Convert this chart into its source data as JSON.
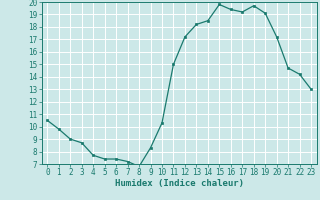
{
  "x": [
    0,
    1,
    2,
    3,
    4,
    5,
    6,
    7,
    8,
    9,
    10,
    11,
    12,
    13,
    14,
    15,
    16,
    17,
    18,
    19,
    20,
    21,
    22,
    23
  ],
  "y": [
    10.5,
    9.8,
    9.0,
    8.7,
    7.7,
    7.4,
    7.4,
    7.2,
    6.8,
    8.3,
    10.3,
    15.0,
    17.2,
    18.2,
    18.5,
    19.8,
    19.4,
    19.2,
    19.7,
    19.1,
    17.2,
    14.7,
    14.2,
    13.0
  ],
  "line_color": "#1a7a6e",
  "marker": "s",
  "marker_size": 2.0,
  "bg_color": "#cce8e8",
  "grid_color": "#ffffff",
  "xlabel": "Humidex (Indice chaleur)",
  "xlim": [
    -0.5,
    23.5
  ],
  "ylim": [
    7,
    20
  ],
  "yticks": [
    7,
    8,
    9,
    10,
    11,
    12,
    13,
    14,
    15,
    16,
    17,
    18,
    19,
    20
  ],
  "xticks": [
    0,
    1,
    2,
    3,
    4,
    5,
    6,
    7,
    8,
    9,
    10,
    11,
    12,
    13,
    14,
    15,
    16,
    17,
    18,
    19,
    20,
    21,
    22,
    23
  ],
  "tick_color": "#1a7a6e",
  "label_color": "#1a7a6e",
  "tick_fontsize": 5.5,
  "xlabel_fontsize": 6.5
}
